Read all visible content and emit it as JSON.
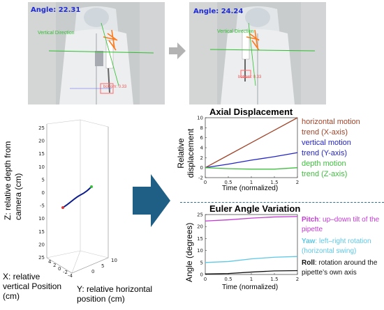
{
  "photos": {
    "left": {
      "angle_label": "Angle: 22.31",
      "green_tag": "Vertical Direction",
      "red_tag": "bottom: 0.33"
    },
    "right": {
      "angle_label": "Angle: 24.24",
      "green_tag": "Vertical Direction",
      "red_tag": "bottom: 0.33"
    }
  },
  "plot3d": {
    "z_label": "Z: relative depth from camera (cm)",
    "x_label": "X: relative vertical Position (cm)",
    "y_label": "Y: relative horizontal position (cm)",
    "z_ticks": [
      "25",
      "20",
      "15",
      "10",
      "5",
      "0",
      "-5",
      "-10",
      "-15",
      "-20",
      "-25"
    ],
    "x_ticks": [
      "4",
      "2",
      "0",
      "-2",
      "-4"
    ],
    "y_ticks": [
      "10",
      "5",
      "0"
    ]
  },
  "axial": {
    "title": "Axial Displacement",
    "ylabel": "Relative displacement",
    "xlabel": "Time (normalized)",
    "legend": [
      {
        "text": "horizontal motion",
        "color": "#a0442a"
      },
      {
        "text": "trend (X-axis)",
        "color": "#a0442a"
      },
      {
        "text": "vertical motion",
        "color": "#2323c8"
      },
      {
        "text": "trend (Y-axis)",
        "color": "#2323c8"
      },
      {
        "text": "depth motion",
        "color": "#3fbf3f"
      },
      {
        "text": "trend (Z-axis)",
        "color": "#3fbf3f"
      }
    ]
  },
  "euler": {
    "title": "Euler Angle Variation",
    "ylabel": "Angle (degrees)",
    "xlabel": "Time (normalized)",
    "pitch_key": "Pitch",
    "pitch_text": ": up–down tilt of the pipette",
    "yaw_key": "Yaw",
    "yaw_text": ": left–right rotation (horizontal swing)",
    "roll_key": "Roll",
    "roll_text": ": rotation around the pipette’s own axis"
  },
  "colors": {
    "pitch": "#c23bd1",
    "yaw": "#5cc8e6",
    "roll": "#111111",
    "arrow": "#1f5f86"
  },
  "chart_data": [
    {
      "type": "line",
      "title": "Axial Displacement",
      "xlabel": "Time (normalized)",
      "ylabel": "Relative displacement",
      "xlim": [
        0,
        2
      ],
      "ylim": [
        -2,
        10
      ],
      "xticks": [
        0,
        0.5,
        1,
        1.5,
        2
      ],
      "yticks": [
        -2,
        0,
        2,
        4,
        6,
        8,
        10
      ],
      "x": [
        0,
        0.5,
        1,
        1.5,
        2
      ],
      "series": [
        {
          "name": "horizontal motion",
          "color": "#a0442a",
          "values": [
            0,
            2.5,
            5,
            7.5,
            10
          ]
        },
        {
          "name": "vertical motion",
          "color": "#2323c8",
          "values": [
            0,
            0.7,
            1.5,
            2.2,
            3
          ]
        },
        {
          "name": "depth motion",
          "color": "#3fbf3f",
          "values": [
            0,
            -0.2,
            -0.3,
            -0.3,
            0
          ]
        }
      ]
    },
    {
      "type": "line",
      "title": "Euler Angle Variation",
      "xlabel": "Time (normalized)",
      "ylabel": "Angle (degrees)",
      "xlim": [
        0,
        2
      ],
      "ylim": [
        0,
        25
      ],
      "xticks": [
        0,
        0.5,
        1,
        1.5,
        2
      ],
      "yticks": [
        0,
        5,
        10,
        15,
        20,
        25
      ],
      "x": [
        0,
        0.5,
        1,
        1.5,
        2
      ],
      "series": [
        {
          "name": "Pitch",
          "color": "#c23bd1",
          "values": [
            22.3,
            22.8,
            23.5,
            24.0,
            24.2
          ]
        },
        {
          "name": "Yaw",
          "color": "#5cc8e6",
          "values": [
            5.0,
            5.4,
            6.5,
            7.2,
            7.5
          ]
        },
        {
          "name": "Roll",
          "color": "#111111",
          "values": [
            0.2,
            0.4,
            1.0,
            1.5,
            1.6
          ]
        }
      ]
    }
  ]
}
